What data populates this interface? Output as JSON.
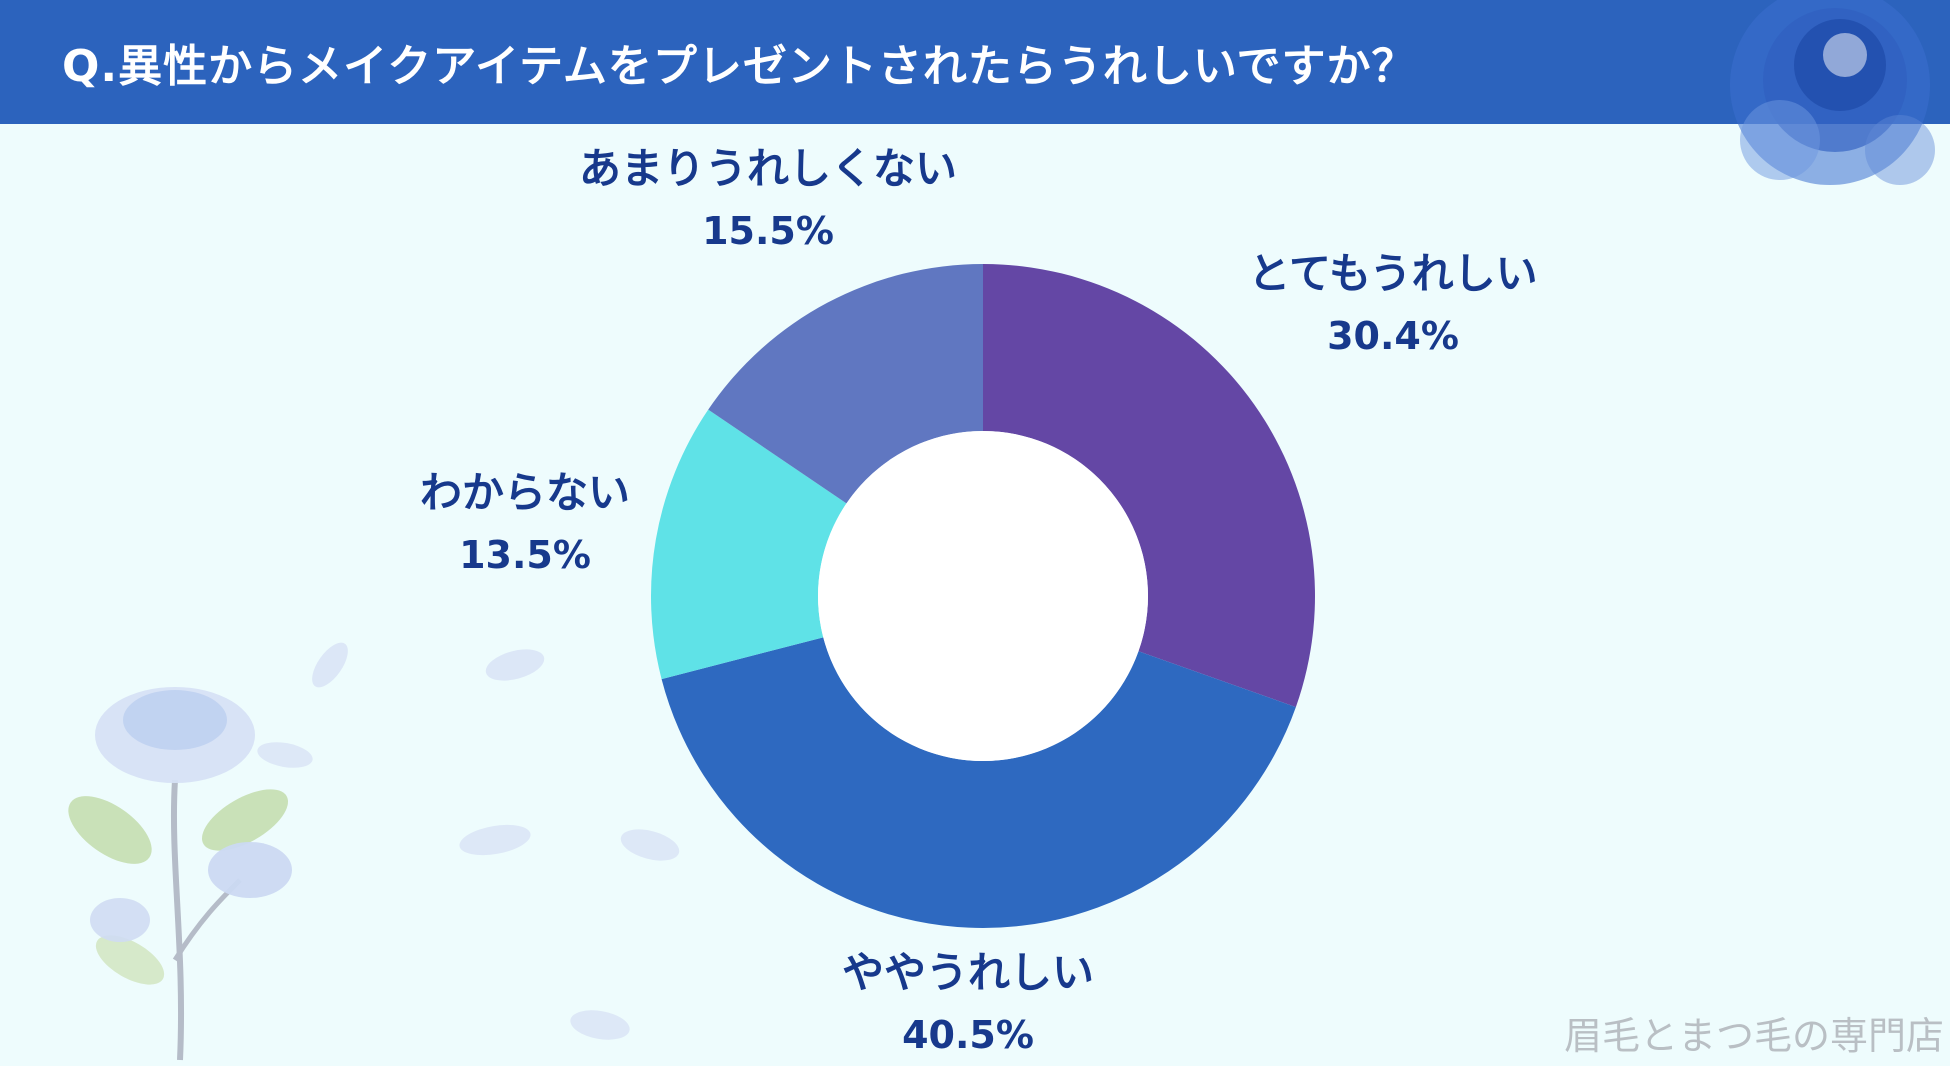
{
  "header": {
    "title": "Q.異性からメイクアイテムをプレゼントされたらうれしいですか？"
  },
  "chart_data": {
    "type": "pie",
    "donut": true,
    "title": "Q.異性からメイクアイテムをプレゼントされたらうれしいですか？",
    "slices": [
      {
        "label": "とてもうれしい",
        "value": 30.4,
        "display": "30.4%",
        "color": "#6447a5"
      },
      {
        "label": "ややうれしい",
        "value": 40.5,
        "display": "40.5%",
        "color": "#2e69c0"
      },
      {
        "label": "わからない",
        "value": 13.5,
        "display": "13.5%",
        "color": "#5fe2e7"
      },
      {
        "label": "あまりうれしくない",
        "value": 15.5,
        "display": "15.5%",
        "color": "#6077c1"
      }
    ],
    "legend": "none"
  },
  "colors": {
    "header": "#2c63bd",
    "background": "#eefcfd",
    "label_text": "#17398c"
  },
  "watermark": "眉毛とまつ毛の専門店"
}
